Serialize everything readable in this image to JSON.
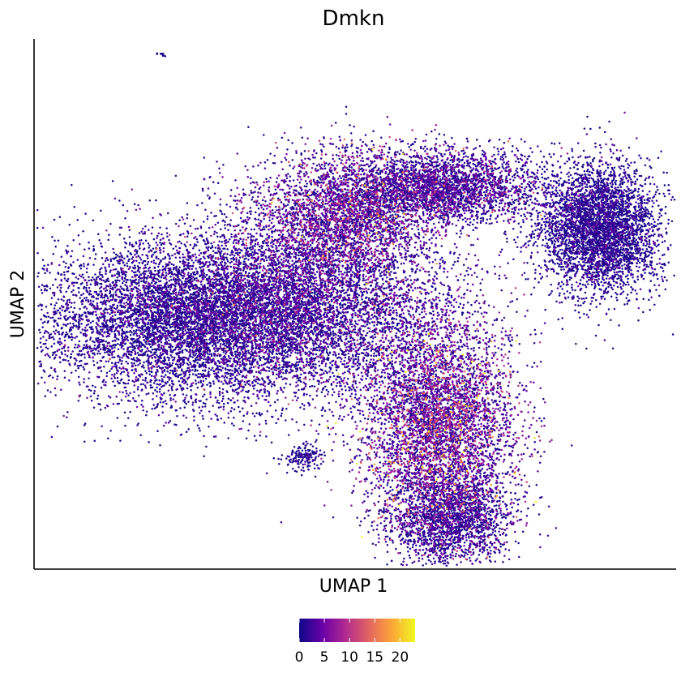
{
  "chart_data": {
    "type": "scatter",
    "title": "Dmkn",
    "xlabel": "UMAP 1",
    "ylabel": "UMAP 2",
    "x_ticks_shown": false,
    "y_ticks_shown": false,
    "grid": false,
    "point_shape": "dot",
    "point_count_approx": 30000,
    "color_variable": "Dmkn expression",
    "colorbar": {
      "position": "bottom",
      "colormap": "plasma",
      "range": [
        0,
        23
      ],
      "ticks": [
        0,
        5,
        10,
        15,
        20
      ],
      "tick_labels": [
        "0",
        "5",
        "10",
        "15",
        "20"
      ],
      "colors": [
        "#0d0887",
        "#6a00a8",
        "#b12a90",
        "#e16462",
        "#fca636",
        "#f0f921"
      ]
    },
    "clusters": [
      {
        "name": "left-lobe",
        "center_x": 0.24,
        "center_y": 0.47,
        "spread_x": 0.12,
        "spread_y": 0.075,
        "weight": 0.22,
        "mean_expr": 1.5
      },
      {
        "name": "central-band-lower",
        "center_x": 0.42,
        "center_y": 0.5,
        "spread_x": 0.12,
        "spread_y": 0.085,
        "weight": 0.18,
        "mean_expr": 2.5
      },
      {
        "name": "central-band-upper",
        "center_x": 0.48,
        "center_y": 0.67,
        "spread_x": 0.07,
        "spread_y": 0.06,
        "weight": 0.09,
        "mean_expr": 4.0
      },
      {
        "name": "upper-arc",
        "center_x": 0.64,
        "center_y": 0.72,
        "spread_x": 0.08,
        "spread_y": 0.035,
        "weight": 0.1,
        "mean_expr": 2.5
      },
      {
        "name": "right-tip",
        "center_x": 0.88,
        "center_y": 0.64,
        "spread_x": 0.045,
        "spread_y": 0.06,
        "weight": 0.13,
        "mean_expr": 1.2
      },
      {
        "name": "lower-branch",
        "center_x": 0.63,
        "center_y": 0.27,
        "spread_x": 0.06,
        "spread_y": 0.1,
        "weight": 0.17,
        "mean_expr": 4.5
      },
      {
        "name": "bottom-tip",
        "center_x": 0.65,
        "center_y": 0.09,
        "spread_x": 0.045,
        "spread_y": 0.045,
        "weight": 0.06,
        "mean_expr": 1.8
      },
      {
        "name": "small-island",
        "center_x": 0.42,
        "center_y": 0.21,
        "spread_x": 0.015,
        "spread_y": 0.012,
        "weight": 0.005,
        "mean_expr": 1.0
      },
      {
        "name": "outlier-top",
        "center_x": 0.2,
        "center_y": 0.97,
        "spread_x": 0.004,
        "spread_y": 0.003,
        "weight": 0.0003,
        "mean_expr": 0.5
      }
    ]
  }
}
